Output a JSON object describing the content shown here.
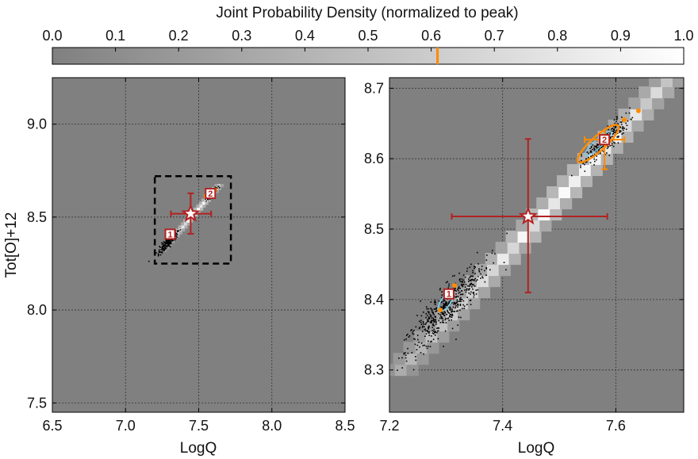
{
  "colorbar": {
    "title": "Joint Probability Density (normalized to peak)",
    "ticks": [
      0.0,
      0.1,
      0.2,
      0.3,
      0.4,
      0.5,
      0.6,
      0.7,
      0.8,
      0.9,
      1.0
    ],
    "tick_labels": [
      "0.0",
      "0.1",
      "0.2",
      "0.3",
      "0.4",
      "0.5",
      "0.6",
      "0.7",
      "0.8",
      "0.9",
      "1.0"
    ],
    "range": [
      0.0,
      1.0
    ],
    "marker_value": 0.61,
    "marker_color": "#ff8c00",
    "colormap": [
      "#808080",
      "#ffffff"
    ]
  },
  "chart_data": [
    {
      "type": "scatter",
      "panel": "left",
      "xlabel": "LogQ",
      "ylabel": "Tot[O]+12",
      "xlim": [
        6.5,
        8.5
      ],
      "ylim": [
        7.45,
        9.25
      ],
      "xticks": [
        6.5,
        7.0,
        7.5,
        8.0,
        8.5
      ],
      "xtick_labels": [
        "6.5",
        "7.0",
        "7.5",
        "8.0",
        "8.5"
      ],
      "yticks": [
        7.5,
        8.0,
        8.5,
        9.0
      ],
      "ytick_labels": [
        "7.5",
        "8.0",
        "8.5",
        "9.0"
      ],
      "grid": true,
      "zoom_box": {
        "x": [
          7.2,
          7.72
        ],
        "y": [
          8.25,
          8.72
        ]
      },
      "star": {
        "x": 7.445,
        "y": 8.518,
        "xerr": [
          7.31,
          7.585
        ],
        "yerr": [
          8.41,
          8.628
        ]
      },
      "solutions": [
        {
          "label": "1",
          "x": 7.305,
          "y": 8.408
        },
        {
          "label": "2",
          "x": 7.58,
          "y": 8.627
        }
      ],
      "band": {
        "x_start": 7.25,
        "y_start": 8.32,
        "x_end": 7.64,
        "y_end": 8.67
      }
    },
    {
      "type": "scatter",
      "panel": "right",
      "xlabel": "LogQ",
      "ylabel": "",
      "xlim": [
        7.2,
        7.72
      ],
      "ylim": [
        8.24,
        8.715
      ],
      "xticks": [
        7.2,
        7.4,
        7.6
      ],
      "xtick_labels": [
        "7.2",
        "7.4",
        "7.6"
      ],
      "yticks": [
        8.3,
        8.4,
        8.5,
        8.6,
        8.7
      ],
      "ytick_labels": [
        "8.3",
        "8.4",
        "8.5",
        "8.6",
        "8.7"
      ],
      "grid": true,
      "star": {
        "x": 7.445,
        "y": 8.518,
        "xerr": [
          7.31,
          7.585
        ],
        "yerr": [
          8.41,
          8.628
        ]
      },
      "solutions": [
        {
          "label": "1",
          "x": 7.305,
          "y": 8.408,
          "color": "#7ec8e3"
        },
        {
          "label": "2",
          "x": 7.58,
          "y": 8.627,
          "color": "#ff8c00",
          "xerr": [
            7.545,
            7.615
          ],
          "yerr": [
            8.585,
            8.64
          ]
        }
      ],
      "band": {
        "x_start": 7.22,
        "y_start": 8.3,
        "x_end": 7.69,
        "y_end": 8.71
      },
      "cluster_low": {
        "x": 7.3,
        "y": 8.39
      },
      "cluster_high": {
        "x": 7.58,
        "y": 8.625
      }
    }
  ]
}
